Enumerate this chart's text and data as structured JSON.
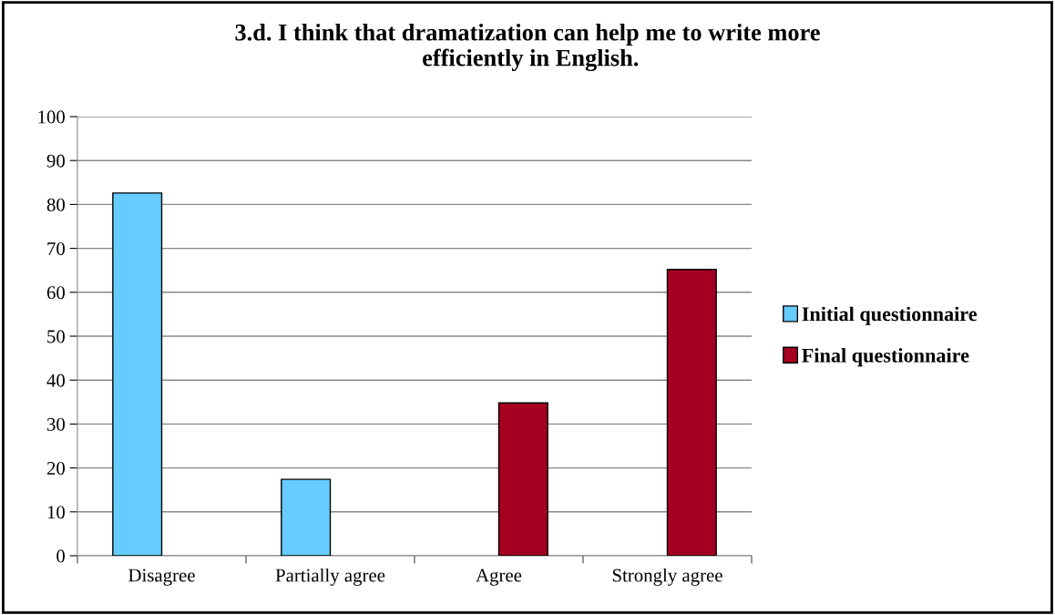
{
  "chart_data": {
    "type": "bar",
    "title": "3.d. I think that dramatization can help me to write more\n efficiently in English.",
    "categories": [
      "Disagree",
      "Partially agree",
      "Agree",
      "Strongly agree"
    ],
    "series": [
      {
        "name": "Initial questionnaire",
        "color": "#66ccff",
        "values": [
          82.6,
          17.4,
          0,
          0
        ]
      },
      {
        "name": "Final questionnaire",
        "color": "#a50021",
        "values": [
          0,
          0,
          34.8,
          65.2
        ]
      }
    ],
    "ylim": [
      0,
      100
    ],
    "yticks": [
      0,
      10,
      20,
      30,
      40,
      50,
      60,
      70,
      80,
      90,
      100
    ],
    "grid": "y",
    "legend": "right"
  }
}
